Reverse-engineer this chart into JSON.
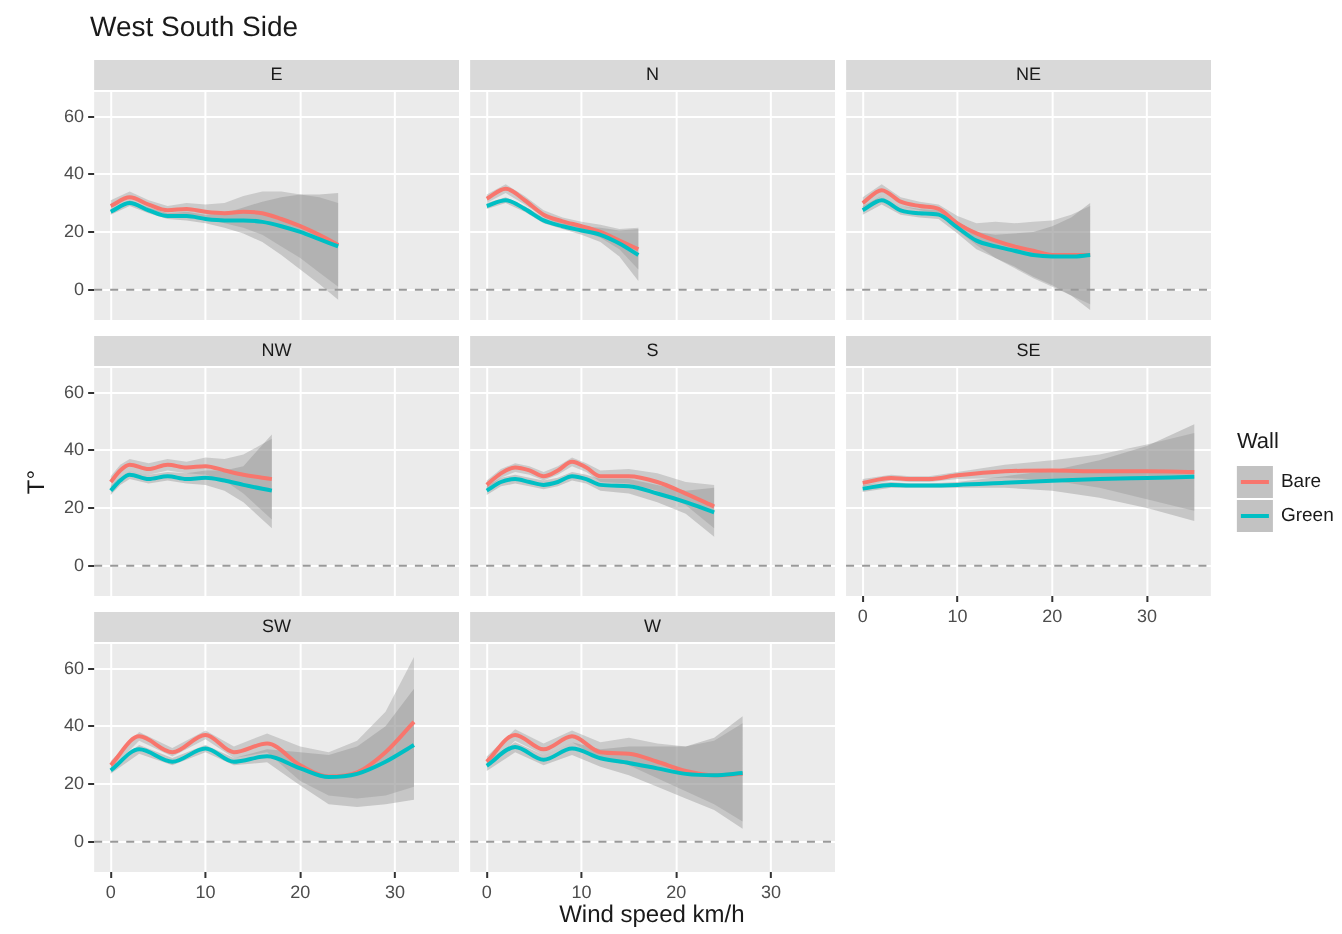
{
  "chart_data": [
    {
      "type": "line",
      "title": "E",
      "annotations": [
        "West South Side"
      ],
      "xlim": [
        -1.75,
        36.75
      ],
      "xticks": [
        0,
        10,
        20,
        30
      ],
      "ylim": [
        -10.5,
        68.5
      ],
      "yticks": [
        0,
        20,
        40,
        60
      ],
      "grid": true,
      "tick_labels": "y",
      "ref_lines": [
        {
          "axis": "y",
          "value": 0,
          "color": "#999999",
          "line_style": "dashed"
        }
      ],
      "series": [
        {
          "color": "#f8766d",
          "x": [
            0,
            2,
            4,
            6,
            8,
            10,
            12,
            14,
            16,
            18,
            20,
            22,
            24
          ],
          "values": [
            29,
            32,
            29.5,
            27.5,
            28,
            27,
            26.5,
            27,
            26.5,
            24.5,
            22,
            19,
            15.5
          ],
          "lower": [
            27,
            30,
            28,
            26,
            26,
            24.5,
            23,
            21.5,
            19,
            15,
            11,
            6,
            1
          ],
          "upper": [
            31,
            34,
            31,
            29,
            30,
            29.5,
            30,
            32.5,
            34,
            34,
            33,
            32,
            30
          ]
        },
        {
          "color": "#00bfc4",
          "x": [
            0,
            2,
            4,
            6,
            8,
            10,
            12,
            14,
            16,
            18,
            20,
            22,
            24
          ],
          "values": [
            27,
            30,
            27.5,
            25.5,
            25.5,
            24.5,
            24,
            24,
            23.5,
            22,
            20,
            17.5,
            15
          ],
          "lower": [
            26,
            29,
            26.5,
            24.5,
            24,
            23,
            21.5,
            19.5,
            16.5,
            12,
            7,
            2,
            -3.5
          ],
          "upper": [
            28,
            31,
            28.5,
            26.5,
            27,
            26,
            26.5,
            28.5,
            30.5,
            32,
            33,
            33,
            33.5
          ]
        }
      ]
    },
    {
      "type": "line",
      "title": "N",
      "xlim": [
        -1.75,
        36.75
      ],
      "xticks": [
        0,
        10,
        20,
        30
      ],
      "ylim": [
        -10.5,
        68.5
      ],
      "yticks": [
        0,
        20,
        40,
        60
      ],
      "grid": true,
      "tick_labels": false,
      "ref_lines": [
        {
          "axis": "y",
          "value": 0,
          "color": "#999999",
          "line_style": "dashed"
        }
      ],
      "series": [
        {
          "color": "#f8766d",
          "x": [
            0,
            2,
            4,
            6,
            8,
            10,
            12,
            14,
            16
          ],
          "values": [
            31.5,
            35,
            31,
            26,
            23.7,
            22,
            20,
            17,
            14
          ],
          "lower": [
            30,
            33.5,
            29.5,
            25,
            22.5,
            20.5,
            18,
            14,
            7
          ],
          "upper": [
            33,
            36.5,
            32.5,
            27.5,
            25,
            23.5,
            22.5,
            21,
            21.5
          ]
        },
        {
          "color": "#00bfc4",
          "x": [
            0,
            2,
            4,
            6,
            8,
            10,
            12,
            14,
            16
          ],
          "values": [
            29,
            31,
            28,
            24,
            22,
            20.5,
            19,
            16,
            12
          ],
          "lower": [
            28,
            30,
            27,
            23,
            21,
            19,
            16.5,
            11.5,
            3
          ],
          "upper": [
            30,
            32,
            29,
            25,
            23,
            22,
            21.5,
            20.5,
            21
          ]
        }
      ]
    },
    {
      "type": "line",
      "title": "NE",
      "xlim": [
        -1.75,
        36.75
      ],
      "xticks": [
        0,
        10,
        20,
        30
      ],
      "ylim": [
        -10.5,
        68.5
      ],
      "yticks": [
        0,
        20,
        40,
        60
      ],
      "grid": true,
      "tick_labels": false,
      "ref_lines": [
        {
          "axis": "y",
          "value": 0,
          "color": "#999999",
          "line_style": "dashed"
        }
      ],
      "series": [
        {
          "color": "#f8766d",
          "x": [
            0,
            2,
            4,
            6,
            8,
            10,
            12,
            14,
            16,
            18,
            20,
            22,
            24
          ],
          "values": [
            30,
            34.5,
            30.5,
            29,
            28,
            23,
            19.5,
            17,
            15,
            13.5,
            12,
            12,
            12
          ],
          "lower": [
            28,
            32.5,
            29,
            27.5,
            26.5,
            20.5,
            15.5,
            11,
            7.5,
            4,
            1,
            -2,
            -5
          ],
          "upper": [
            32,
            36.5,
            32,
            30.5,
            29.5,
            25.5,
            23,
            23.5,
            23,
            23.5,
            24,
            26,
            29
          ]
        },
        {
          "color": "#00bfc4",
          "x": [
            0,
            2,
            4,
            6,
            8,
            10,
            12,
            14,
            16,
            18,
            20,
            22,
            24
          ],
          "values": [
            27.5,
            31,
            27.5,
            26.5,
            26,
            21.5,
            17,
            15,
            13.5,
            12,
            11.5,
            11.5,
            12
          ],
          "lower": [
            26,
            29.5,
            26,
            25,
            24.5,
            19.5,
            14,
            11,
            8,
            4.5,
            1.5,
            -2,
            -7
          ],
          "upper": [
            29,
            32.5,
            29,
            28,
            27.5,
            23.5,
            20,
            19,
            19.5,
            20,
            22,
            25,
            30
          ]
        }
      ]
    },
    {
      "type": "line",
      "title": "NW",
      "ylabel": "T°",
      "xlim": [
        -1.75,
        36.75
      ],
      "xticks": [
        0,
        10,
        20,
        30
      ],
      "ylim": [
        -10.5,
        68.5
      ],
      "yticks": [
        0,
        20,
        40,
        60
      ],
      "grid": true,
      "tick_labels": "y",
      "ref_lines": [
        {
          "axis": "y",
          "value": 0,
          "color": "#999999",
          "line_style": "dashed"
        }
      ],
      "series": [
        {
          "color": "#f8766d",
          "x": [
            0,
            1,
            2,
            4,
            6,
            8,
            10,
            12,
            14,
            17
          ],
          "values": [
            29,
            33,
            35,
            33.5,
            35,
            34,
            34.5,
            33,
            31.5,
            30
          ],
          "lower": [
            27,
            31,
            33,
            31.5,
            33,
            32,
            31.5,
            29.5,
            25,
            16
          ],
          "upper": [
            31,
            35,
            37,
            35.5,
            37,
            36,
            37.5,
            37,
            38.5,
            44
          ]
        },
        {
          "color": "#00bfc4",
          "x": [
            0,
            1,
            2,
            4,
            6,
            8,
            10,
            12,
            14,
            17
          ],
          "values": [
            26,
            29.5,
            31.5,
            30,
            31,
            30,
            30.5,
            29.5,
            28,
            26
          ],
          "lower": [
            24.5,
            28,
            30,
            28.5,
            29.5,
            28.5,
            28,
            26,
            22,
            13
          ],
          "upper": [
            27.5,
            31,
            33,
            31.5,
            32.5,
            32,
            33,
            33,
            34.5,
            45.5
          ]
        }
      ]
    },
    {
      "type": "line",
      "title": "S",
      "xlim": [
        -1.75,
        36.75
      ],
      "xticks": [
        0,
        10,
        20,
        30
      ],
      "ylim": [
        -10.5,
        68.5
      ],
      "yticks": [
        0,
        20,
        40,
        60
      ],
      "grid": true,
      "tick_labels": false,
      "ref_lines": [
        {
          "axis": "y",
          "value": 0,
          "color": "#999999",
          "line_style": "dashed"
        }
      ],
      "series": [
        {
          "color": "#f8766d",
          "x": [
            0,
            1.5,
            3,
            4.5,
            6,
            7.5,
            9,
            10.5,
            12,
            15,
            18,
            21,
            24
          ],
          "values": [
            28,
            32,
            34,
            33,
            31,
            33,
            36,
            34,
            31,
            31,
            29,
            25,
            20.5
          ],
          "lower": [
            26.5,
            30.5,
            32.5,
            31.5,
            29.5,
            31.5,
            34.5,
            32.5,
            29,
            28.5,
            26,
            21,
            13
          ],
          "upper": [
            29.5,
            33.5,
            35.5,
            34.5,
            32.5,
            34.5,
            37.5,
            35.5,
            33,
            33.5,
            32,
            29,
            28
          ]
        },
        {
          "color": "#00bfc4",
          "x": [
            0,
            1.5,
            3,
            4.5,
            6,
            7.5,
            9,
            10.5,
            12,
            15,
            18,
            21,
            24
          ],
          "values": [
            26,
            29,
            30,
            29,
            28,
            29,
            31,
            30,
            28,
            27.5,
            25,
            22,
            18.5
          ],
          "lower": [
            24.5,
            27.5,
            28.5,
            27.5,
            26.5,
            27.5,
            29.5,
            28.5,
            26,
            25,
            22,
            18,
            10
          ],
          "upper": [
            27.5,
            30.5,
            31.5,
            30.5,
            29.5,
            30.5,
            32.5,
            31.5,
            30,
            30,
            28,
            26,
            27
          ]
        }
      ]
    },
    {
      "type": "line",
      "title": "SE",
      "legend": "right",
      "legend_title": "Wall",
      "xlim": [
        -1.75,
        36.75
      ],
      "xticks": [
        0,
        10,
        20,
        30
      ],
      "ylim": [
        -10.5,
        68.5
      ],
      "yticks": [
        0,
        20,
        40,
        60
      ],
      "grid": true,
      "tick_labels": "x",
      "ref_lines": [
        {
          "axis": "y",
          "value": 0,
          "color": "#999999",
          "line_style": "dashed"
        }
      ],
      "series": [
        {
          "name": "Bare",
          "color": "#f8766d",
          "x": [
            0,
            3,
            5,
            7,
            10,
            15,
            20,
            25,
            30,
            35
          ],
          "values": [
            28.7,
            30.4,
            30,
            30,
            31.3,
            32.7,
            33,
            32.7,
            32.7,
            32.5
          ],
          "lower": [
            27.5,
            29.5,
            29,
            29,
            30,
            30.5,
            29.5,
            27,
            23,
            19
          ],
          "upper": [
            30,
            31.5,
            31,
            31,
            32.5,
            35,
            36.5,
            38.5,
            42,
            46
          ]
        },
        {
          "name": "Green",
          "color": "#00bfc4",
          "x": [
            0,
            3,
            5,
            7,
            10,
            15,
            20,
            25,
            30,
            35
          ],
          "values": [
            26.7,
            28,
            27.8,
            27.8,
            28,
            28.7,
            29.4,
            30,
            30.4,
            30.8
          ],
          "lower": [
            25.5,
            27,
            27,
            27,
            27,
            27,
            26,
            23.5,
            20,
            15.5
          ],
          "upper": [
            28,
            29,
            28.5,
            28.5,
            29,
            31,
            33,
            36.5,
            41.5,
            49
          ]
        }
      ]
    },
    {
      "type": "line",
      "title": "SW",
      "xlim": [
        -1.75,
        36.75
      ],
      "xticks": [
        0,
        10,
        20,
        30
      ],
      "ylim": [
        -10.5,
        68.5
      ],
      "yticks": [
        0,
        20,
        40,
        60
      ],
      "grid": true,
      "ref_lines": [
        {
          "axis": "y",
          "value": 0,
          "color": "#999999",
          "line_style": "dashed"
        }
      ],
      "series": [
        {
          "color": "#f8766d",
          "x": [
            0,
            3,
            6.5,
            10,
            13,
            16.5,
            20,
            23,
            26,
            29,
            32
          ],
          "values": [
            26.5,
            36.5,
            31,
            37,
            31,
            34,
            26.5,
            22.6,
            24,
            31,
            41.5
          ],
          "lower": [
            25,
            35,
            29.5,
            35.5,
            29,
            31,
            21,
            16,
            15,
            16,
            19
          ],
          "upper": [
            28,
            38,
            32.5,
            38.5,
            33,
            37.5,
            33,
            31,
            35,
            45,
            64
          ]
        },
        {
          "color": "#00bfc4",
          "x": [
            0,
            3,
            6.5,
            10,
            13,
            16.5,
            20,
            23,
            26,
            29,
            32
          ],
          "values": [
            24.7,
            32,
            27.7,
            32.3,
            27.7,
            29.6,
            25.4,
            22.4,
            23.5,
            27.7,
            33.5
          ],
          "lower": [
            23.5,
            30.5,
            26.5,
            31,
            26.5,
            27.5,
            19.5,
            13,
            12,
            13,
            14.5
          ],
          "upper": [
            26,
            33.5,
            29,
            33.5,
            29,
            32,
            31,
            30,
            33,
            40,
            53
          ]
        }
      ]
    },
    {
      "type": "line",
      "title": "W",
      "xlabel": "Wind speed km/h",
      "xlim": [
        -1.75,
        36.75
      ],
      "xticks": [
        0,
        10,
        20,
        30
      ],
      "ylim": [
        -10.5,
        68.5
      ],
      "yticks": [
        0,
        20,
        40,
        60
      ],
      "grid": true,
      "tick_labels": "x",
      "ref_lines": [
        {
          "axis": "y",
          "value": 0,
          "color": "#999999",
          "line_style": "dashed"
        }
      ],
      "series": [
        {
          "color": "#f8766d",
          "x": [
            0,
            3,
            6,
            9,
            12,
            15,
            18,
            21,
            24,
            27
          ],
          "values": [
            27.7,
            37,
            32,
            36.5,
            31,
            30.5,
            27.7,
            24.5,
            23,
            23.5
          ],
          "lower": [
            26,
            35,
            30,
            34.5,
            28.5,
            26.5,
            22,
            17.5,
            13,
            7
          ],
          "upper": [
            29.5,
            39,
            34,
            38.5,
            34.5,
            36,
            34,
            33,
            35,
            41
          ]
        },
        {
          "color": "#00bfc4",
          "x": [
            0,
            3,
            6,
            9,
            12,
            15,
            18,
            21,
            24,
            27
          ],
          "values": [
            26.3,
            32.8,
            28.4,
            32.3,
            28.9,
            27.3,
            25.4,
            23.5,
            23,
            23.8
          ],
          "lower": [
            24.5,
            31,
            26.5,
            30,
            26,
            23,
            19,
            15,
            11,
            4.5
          ],
          "upper": [
            28,
            34.5,
            30,
            34.5,
            32,
            33,
            33,
            33,
            36,
            43.5
          ]
        }
      ]
    }
  ]
}
